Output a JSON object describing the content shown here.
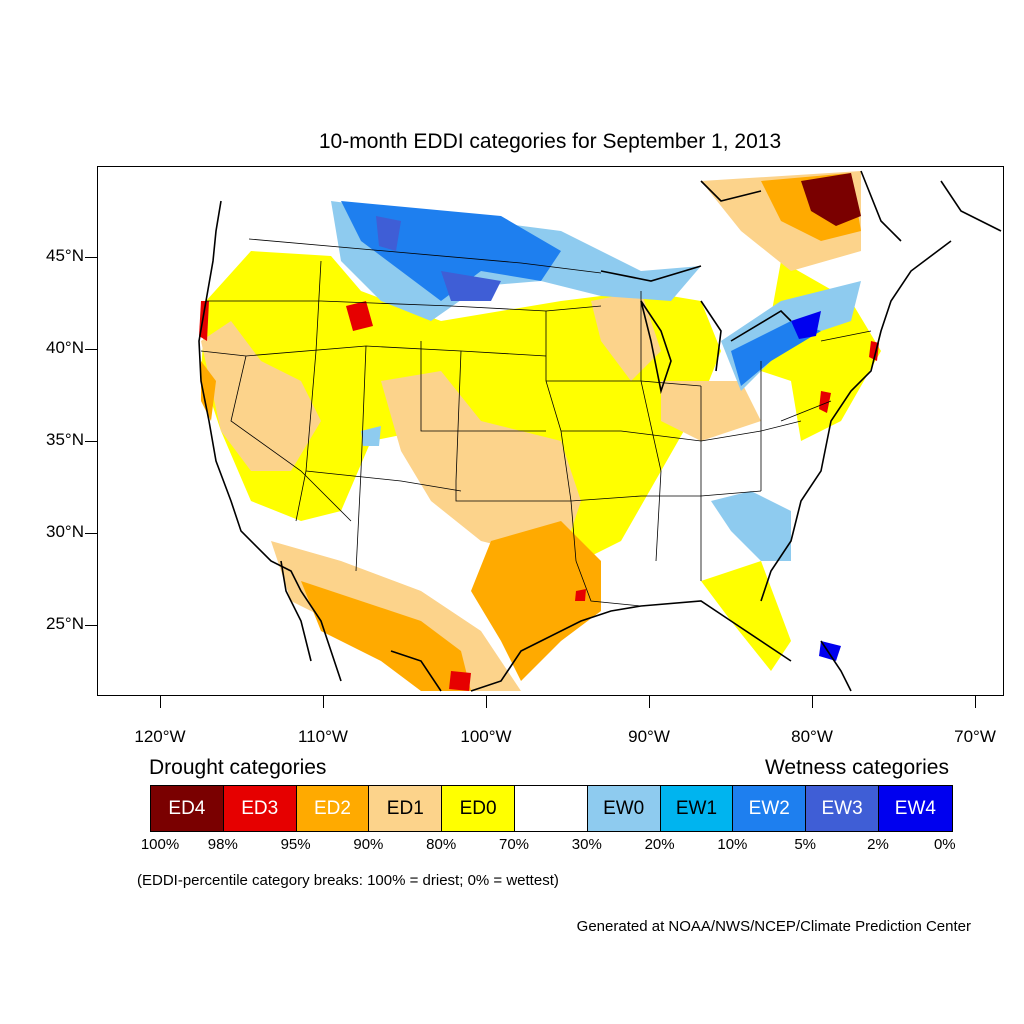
{
  "title": "10-month EDDI categories for September 1, 2013",
  "lat_labels": [
    "45°N",
    "40°N",
    "35°N",
    "30°N",
    "25°N"
  ],
  "lon_labels": [
    "120°W",
    "110°W",
    "100°W",
    "90°W",
    "80°W",
    "70°W"
  ],
  "drought_heading": "Drought categories",
  "wetness_heading": "Wetness categories",
  "categories": [
    {
      "label": "ED4",
      "color": "#7a0000",
      "text_color": "#ffffff"
    },
    {
      "label": "ED3",
      "color": "#e60000",
      "text_color": "#ffffff"
    },
    {
      "label": "ED2",
      "color": "#ffaa00",
      "text_color": "#ffffff"
    },
    {
      "label": "ED1",
      "color": "#fcd38b",
      "text_color": "#000000"
    },
    {
      "label": "ED0",
      "color": "#ffff00",
      "text_color": "#000000"
    },
    {
      "label": "",
      "color": "#ffffff",
      "text_color": "#000000"
    },
    {
      "label": "EW0",
      "color": "#8ecbef",
      "text_color": "#000000"
    },
    {
      "label": "EW1",
      "color": "#00b4ef",
      "text_color": "#000000"
    },
    {
      "label": "EW2",
      "color": "#1e7fef",
      "text_color": "#ffffff"
    },
    {
      "label": "EW3",
      "color": "#3f5ed6",
      "text_color": "#ffffff"
    },
    {
      "label": "EW4",
      "color": "#0000ef",
      "text_color": "#ffffff"
    }
  ],
  "percent_breaks": [
    "100%",
    "98%",
    "95%",
    "90%",
    "80%",
    "70%",
    "30%",
    "20%",
    "10%",
    "5%",
    "2%",
    "0%"
  ],
  "note": "(EDDI-percentile category breaks: 100% = driest; 0% = wettest)",
  "credit": "Generated at NOAA/NWS/NCEP/Climate Prediction Center"
}
